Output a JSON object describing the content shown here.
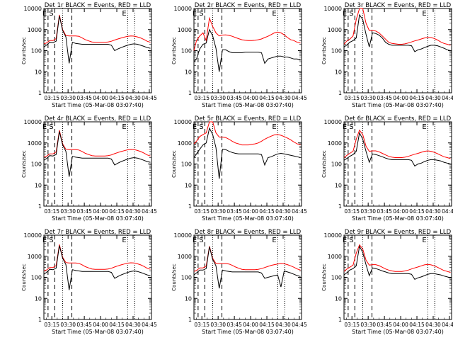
{
  "figure": {
    "colors": {
      "events": "#000000",
      "lld": "#ff0000",
      "axis": "#000000",
      "background": "#ffffff"
    },
    "x_axis": {
      "label": "Start Time (05-Mar-08 03:07:40)",
      "ticks": [
        "03:15",
        "03:30",
        "03:45",
        "04:00",
        "04:15",
        "04:30",
        "04:45"
      ],
      "range": [
        "03:07:40",
        "04:47:00"
      ]
    },
    "y_axis": {
      "label": "Counts/sec",
      "scale": "log",
      "ticks": [
        "1",
        "10",
        "100",
        "1000",
        "10000"
      ],
      "range": [
        1,
        10000
      ]
    },
    "marker_letters": [
      "E",
      "S",
      "E"
    ]
  },
  "chart_data": [
    {
      "type": "line",
      "title": "Det 1r BLACK = Events, RED = LLD",
      "x": [
        "03:07:40",
        "03:10",
        "03:13",
        "03:16",
        "03:19",
        "03:22",
        "03:25",
        "03:28",
        "03:31",
        "03:34",
        "03:37",
        "03:40",
        "03:43",
        "03:46",
        "03:49",
        "03:52",
        "03:55",
        "03:58",
        "04:01",
        "04:04",
        "04:07",
        "04:10",
        "04:13",
        "04:16",
        "04:19",
        "04:22",
        "04:25",
        "04:28",
        "04:31",
        "04:34",
        "04:37",
        "04:40",
        "04:43",
        "04:46"
      ],
      "series": [
        {
          "name": "Events",
          "values": [
            150,
            180,
            250,
            240,
            280,
            4500,
            900,
            450,
            25,
            250,
            220,
            210,
            200,
            200,
            200,
            200,
            200,
            200,
            200,
            200,
            200,
            180,
            100,
            120,
            140,
            160,
            180,
            200,
            210,
            200,
            180,
            160,
            140,
            130
          ]
        },
        {
          "name": "LLD",
          "values": [
            210,
            230,
            300,
            300,
            370,
            5000,
            1000,
            520,
            500,
            500,
            500,
            480,
            400,
            330,
            290,
            260,
            250,
            250,
            250,
            250,
            260,
            280,
            320,
            360,
            400,
            440,
            480,
            500,
            490,
            450,
            400,
            340,
            280,
            250
          ]
        }
      ]
    },
    {
      "type": "line",
      "title": "Det 2r BLACK = Events, RED = LLD",
      "x": [
        "03:07:40",
        "03:10",
        "03:13",
        "03:16",
        "03:19",
        "03:22",
        "03:25",
        "03:28",
        "03:31",
        "03:34",
        "03:37",
        "03:40",
        "03:43",
        "03:46",
        "03:49",
        "03:52",
        "03:55",
        "03:58",
        "04:01",
        "04:04",
        "04:07",
        "04:10",
        "04:13",
        "04:16",
        "04:19",
        "04:22",
        "04:25",
        "04:28",
        "04:31",
        "04:34",
        "04:37",
        "04:40",
        "04:43",
        "04:46"
      ],
      "series": [
        {
          "name": "Events",
          "values": [
            30,
            40,
            120,
            200,
            230,
            1000,
            500,
            130,
            10,
            110,
            110,
            90,
            80,
            80,
            80,
            80,
            85,
            85,
            85,
            85,
            85,
            80,
            25,
            40,
            45,
            50,
            55,
            55,
            50,
            50,
            45,
            40,
            40,
            35
          ]
        },
        {
          "name": "LLD",
          "values": [
            100,
            300,
            500,
            700,
            300,
            3500,
            1400,
            700,
            500,
            550,
            560,
            530,
            480,
            420,
            370,
            330,
            310,
            300,
            300,
            310,
            330,
            360,
            420,
            480,
            580,
            700,
            760,
            700,
            560,
            420,
            330,
            300,
            250,
            230
          ]
        }
      ]
    },
    {
      "type": "line",
      "title": "Det 3r BLACK = Events, RED = LLD",
      "x": [
        "03:07:40",
        "03:10",
        "03:13",
        "03:16",
        "03:19",
        "03:22",
        "03:25",
        "03:28",
        "03:31",
        "03:34",
        "03:37",
        "03:40",
        "03:43",
        "03:46",
        "03:49",
        "03:52",
        "03:55",
        "03:58",
        "04:01",
        "04:04",
        "04:07",
        "04:10",
        "04:13",
        "04:16",
        "04:19",
        "04:22",
        "04:25",
        "04:28",
        "04:31",
        "04:34",
        "04:37",
        "04:40",
        "04:43",
        "04:46"
      ],
      "series": [
        {
          "name": "Events",
          "values": [
            150,
            180,
            250,
            300,
            400,
            5000,
            3000,
            600,
            150,
            700,
            650,
            550,
            400,
            250,
            200,
            180,
            180,
            180,
            180,
            180,
            180,
            170,
            90,
            110,
            120,
            140,
            160,
            180,
            180,
            170,
            150,
            130,
            110,
            100
          ]
        },
        {
          "name": "LLD",
          "values": [
            200,
            280,
            350,
            500,
            3000,
            10000,
            10000,
            2000,
            900,
            900,
            850,
            700,
            500,
            350,
            250,
            220,
            210,
            200,
            200,
            210,
            230,
            260,
            290,
            320,
            360,
            400,
            430,
            420,
            380,
            320,
            260,
            220,
            200,
            180
          ]
        }
      ]
    },
    {
      "type": "line",
      "title": "Det 4r BLACK = Events, RED = LLD",
      "x": [
        "03:07:40",
        "03:10",
        "03:13",
        "03:16",
        "03:19",
        "03:22",
        "03:25",
        "03:28",
        "03:31",
        "03:34",
        "03:37",
        "03:40",
        "03:43",
        "03:46",
        "03:49",
        "03:52",
        "03:55",
        "03:58",
        "04:01",
        "04:04",
        "04:07",
        "04:10",
        "04:13",
        "04:16",
        "04:19",
        "04:22",
        "04:25",
        "04:28",
        "04:31",
        "04:34",
        "04:37",
        "04:40",
        "04:43",
        "04:46"
      ],
      "series": [
        {
          "name": "Events",
          "values": [
            150,
            180,
            250,
            240,
            280,
            3500,
            800,
            400,
            25,
            230,
            210,
            200,
            190,
            190,
            190,
            190,
            190,
            190,
            190,
            190,
            190,
            170,
            90,
            110,
            130,
            150,
            170,
            190,
            200,
            190,
            170,
            150,
            130,
            120
          ]
        },
        {
          "name": "LLD",
          "values": [
            210,
            230,
            300,
            300,
            370,
            4000,
            900,
            500,
            480,
            480,
            480,
            460,
            390,
            320,
            280,
            250,
            240,
            240,
            240,
            240,
            250,
            270,
            310,
            350,
            390,
            430,
            470,
            490,
            480,
            440,
            390,
            330,
            270,
            240
          ]
        }
      ]
    },
    {
      "type": "line",
      "title": "Det 5r BLACK = Events, RED = LLD",
      "x": [
        "03:07:40",
        "03:10",
        "03:13",
        "03:16",
        "03:19",
        "03:22",
        "03:25",
        "03:28",
        "03:31",
        "03:34",
        "03:37",
        "03:40",
        "03:43",
        "03:46",
        "03:49",
        "03:52",
        "03:55",
        "03:58",
        "04:01",
        "04:04",
        "04:07",
        "04:10",
        "04:13",
        "04:16",
        "04:19",
        "04:22",
        "04:25",
        "04:28",
        "04:31",
        "04:34",
        "04:37",
        "04:40",
        "04:43",
        "04:46"
      ],
      "series": [
        {
          "name": "Events",
          "values": [
            200,
            300,
            500,
            800,
            1000,
            5000,
            2500,
            600,
            20,
            500,
            480,
            400,
            350,
            320,
            300,
            300,
            300,
            300,
            300,
            300,
            300,
            280,
            90,
            200,
            220,
            260,
            300,
            320,
            300,
            280,
            260,
            240,
            220,
            200
          ]
        },
        {
          "name": "LLD",
          "values": [
            900,
            1200,
            2000,
            2500,
            3000,
            10000,
            10000,
            3000,
            1900,
            1900,
            1800,
            1500,
            1200,
            1000,
            900,
            800,
            800,
            800,
            850,
            900,
            1000,
            1200,
            1500,
            1800,
            2100,
            2400,
            2500,
            2300,
            2000,
            1700,
            1400,
            1100,
            900,
            800
          ]
        }
      ]
    },
    {
      "type": "line",
      "title": "Det 6r BLACK = Events, RED = LLD",
      "x": [
        "03:07:40",
        "03:10",
        "03:13",
        "03:16",
        "03:19",
        "03:22",
        "03:25",
        "03:28",
        "03:31",
        "03:34",
        "03:37",
        "03:40",
        "03:43",
        "03:46",
        "03:49",
        "03:52",
        "03:55",
        "03:58",
        "04:01",
        "04:04",
        "04:07",
        "04:10",
        "04:13",
        "04:16",
        "04:19",
        "04:22",
        "04:25",
        "04:28",
        "04:31",
        "04:34",
        "04:37",
        "04:40",
        "04:43",
        "04:46"
      ],
      "series": [
        {
          "name": "Events",
          "values": [
            150,
            180,
            230,
            280,
            400,
            3000,
            1500,
            400,
            120,
            300,
            280,
            250,
            220,
            190,
            170,
            160,
            160,
            160,
            160,
            160,
            160,
            150,
            80,
            100,
            110,
            130,
            150,
            160,
            160,
            150,
            140,
            120,
            110,
            100
          ]
        },
        {
          "name": "LLD",
          "values": [
            200,
            250,
            320,
            400,
            1500,
            4000,
            2500,
            700,
            400,
            420,
            420,
            380,
            320,
            270,
            230,
            210,
            200,
            200,
            200,
            210,
            230,
            260,
            290,
            320,
            360,
            400,
            420,
            400,
            360,
            310,
            260,
            220,
            200,
            180
          ]
        }
      ]
    },
    {
      "type": "line",
      "title": "Det 7r BLACK = Events, RED = LLD",
      "x": [
        "03:07:40",
        "03:10",
        "03:13",
        "03:16",
        "03:19",
        "03:22",
        "03:25",
        "03:28",
        "03:31",
        "03:34",
        "03:37",
        "03:40",
        "03:43",
        "03:46",
        "03:49",
        "03:52",
        "03:55",
        "03:58",
        "04:01",
        "04:04",
        "04:07",
        "04:10",
        "04:13",
        "04:16",
        "04:19",
        "04:22",
        "04:25",
        "04:28",
        "04:31",
        "04:34",
        "04:37",
        "04:40",
        "04:43",
        "04:46"
      ],
      "series": [
        {
          "name": "Events",
          "values": [
            140,
            170,
            240,
            230,
            270,
            3200,
            800,
            400,
            25,
            230,
            210,
            200,
            190,
            190,
            190,
            190,
            190,
            190,
            190,
            190,
            190,
            170,
            90,
            110,
            130,
            150,
            170,
            190,
            200,
            190,
            170,
            150,
            130,
            120
          ]
        },
        {
          "name": "LLD",
          "values": [
            200,
            220,
            290,
            290,
            360,
            3600,
            900,
            500,
            480,
            480,
            480,
            460,
            390,
            320,
            280,
            250,
            240,
            240,
            240,
            240,
            250,
            270,
            310,
            350,
            390,
            430,
            470,
            490,
            480,
            440,
            390,
            330,
            270,
            240
          ]
        }
      ]
    },
    {
      "type": "line",
      "title": "Det 8r BLACK = Events, RED = LLD",
      "x": [
        "03:07:40",
        "03:10",
        "03:13",
        "03:16",
        "03:19",
        "03:22",
        "03:25",
        "03:28",
        "03:31",
        "03:34",
        "03:37",
        "03:40",
        "03:43",
        "03:46",
        "03:49",
        "03:52",
        "03:55",
        "03:58",
        "04:01",
        "04:04",
        "04:07",
        "04:10",
        "04:13",
        "04:16",
        "04:19",
        "04:22",
        "04:25",
        "04:28",
        "04:31",
        "04:34",
        "04:37",
        "04:40",
        "04:43",
        "04:46"
      ],
      "series": [
        {
          "name": "Events",
          "values": [
            130,
            160,
            220,
            220,
            260,
            2800,
            700,
            350,
            30,
            220,
            200,
            190,
            180,
            180,
            180,
            180,
            180,
            180,
            180,
            180,
            180,
            160,
            90,
            100,
            110,
            120,
            130,
            35,
            200,
            180,
            160,
            140,
            120,
            110
          ]
        },
        {
          "name": "LLD",
          "values": [
            190,
            210,
            280,
            280,
            340,
            3000,
            800,
            450,
            450,
            450,
            450,
            430,
            370,
            310,
            270,
            240,
            230,
            230,
            230,
            230,
            240,
            260,
            290,
            330,
            370,
            400,
            430,
            450,
            440,
            400,
            350,
            300,
            250,
            220
          ]
        }
      ]
    },
    {
      "type": "line",
      "title": "Det 9r BLACK = Events, RED = LLD",
      "x": [
        "03:07:40",
        "03:10",
        "03:13",
        "03:16",
        "03:19",
        "03:22",
        "03:25",
        "03:28",
        "03:31",
        "03:34",
        "03:37",
        "03:40",
        "03:43",
        "03:46",
        "03:49",
        "03:52",
        "03:55",
        "03:58",
        "04:01",
        "04:04",
        "04:07",
        "04:10",
        "04:13",
        "04:16",
        "04:19",
        "04:22",
        "04:25",
        "04:28",
        "04:31",
        "04:34",
        "04:37",
        "04:40",
        "04:43",
        "04:46"
      ],
      "series": [
        {
          "name": "Events",
          "values": [
            130,
            160,
            220,
            260,
            350,
            3000,
            1500,
            400,
            120,
            280,
            260,
            230,
            200,
            180,
            160,
            150,
            150,
            150,
            150,
            150,
            150,
            140,
            80,
            95,
            105,
            120,
            140,
            150,
            150,
            140,
            130,
            115,
            105,
            95
          ]
        },
        {
          "name": "LLD",
          "values": [
            190,
            240,
            300,
            380,
            1400,
            3500,
            2200,
            650,
            380,
            400,
            400,
            360,
            300,
            250,
            220,
            200,
            190,
            190,
            190,
            200,
            220,
            250,
            280,
            310,
            350,
            390,
            410,
            390,
            350,
            300,
            250,
            210,
            190,
            170
          ]
        }
      ]
    }
  ]
}
